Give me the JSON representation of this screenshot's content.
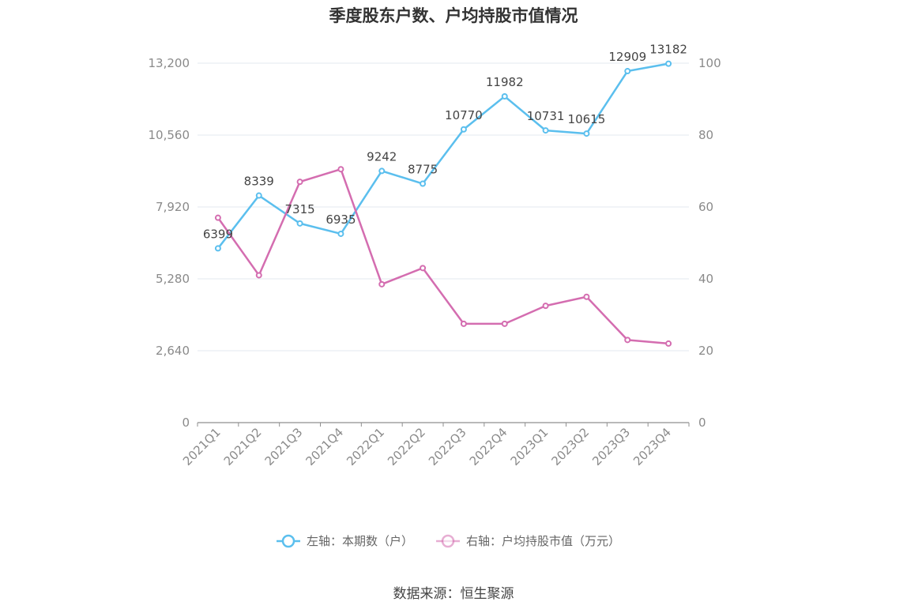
{
  "chart_data": {
    "type": "line",
    "title": "季度股东户数、户均持股市值情况",
    "categories": [
      "2021Q1",
      "2021Q2",
      "2021Q3",
      "2021Q4",
      "2022Q1",
      "2022Q2",
      "2022Q3",
      "2022Q4",
      "2023Q1",
      "2023Q2",
      "2023Q3",
      "2023Q4"
    ],
    "left_axis": {
      "ylim": [
        0,
        13200
      ],
      "ticks": [
        "0",
        "2,640",
        "5,280",
        "7,920",
        "10,560",
        "13,200"
      ]
    },
    "right_axis": {
      "ylim": [
        0,
        100
      ],
      "ticks": [
        "0",
        "20",
        "40",
        "60",
        "80",
        "100"
      ]
    },
    "series": [
      {
        "name": "左轴：本期数（户）",
        "axis": "left",
        "color": "#5bbfee",
        "values": [
          6399,
          8339,
          7315,
          6935,
          9242,
          8775,
          10770,
          11982,
          10731,
          10615,
          12909,
          13182
        ],
        "labels": [
          "6399",
          "8339",
          "7315",
          "6935",
          "9242",
          "8775",
          "10770",
          "11982",
          "10731",
          "10615",
          "12909",
          "13182"
        ]
      },
      {
        "name": "右轴：户均持股市值（万元）",
        "axis": "right",
        "color": "#d46db0",
        "values": [
          57,
          41,
          67,
          70.5,
          38.5,
          43,
          27.5,
          27.5,
          32.5,
          35,
          23,
          22
        ]
      }
    ],
    "grid": true,
    "legend_position": "bottom"
  },
  "source": "数据来源：恒生聚源"
}
